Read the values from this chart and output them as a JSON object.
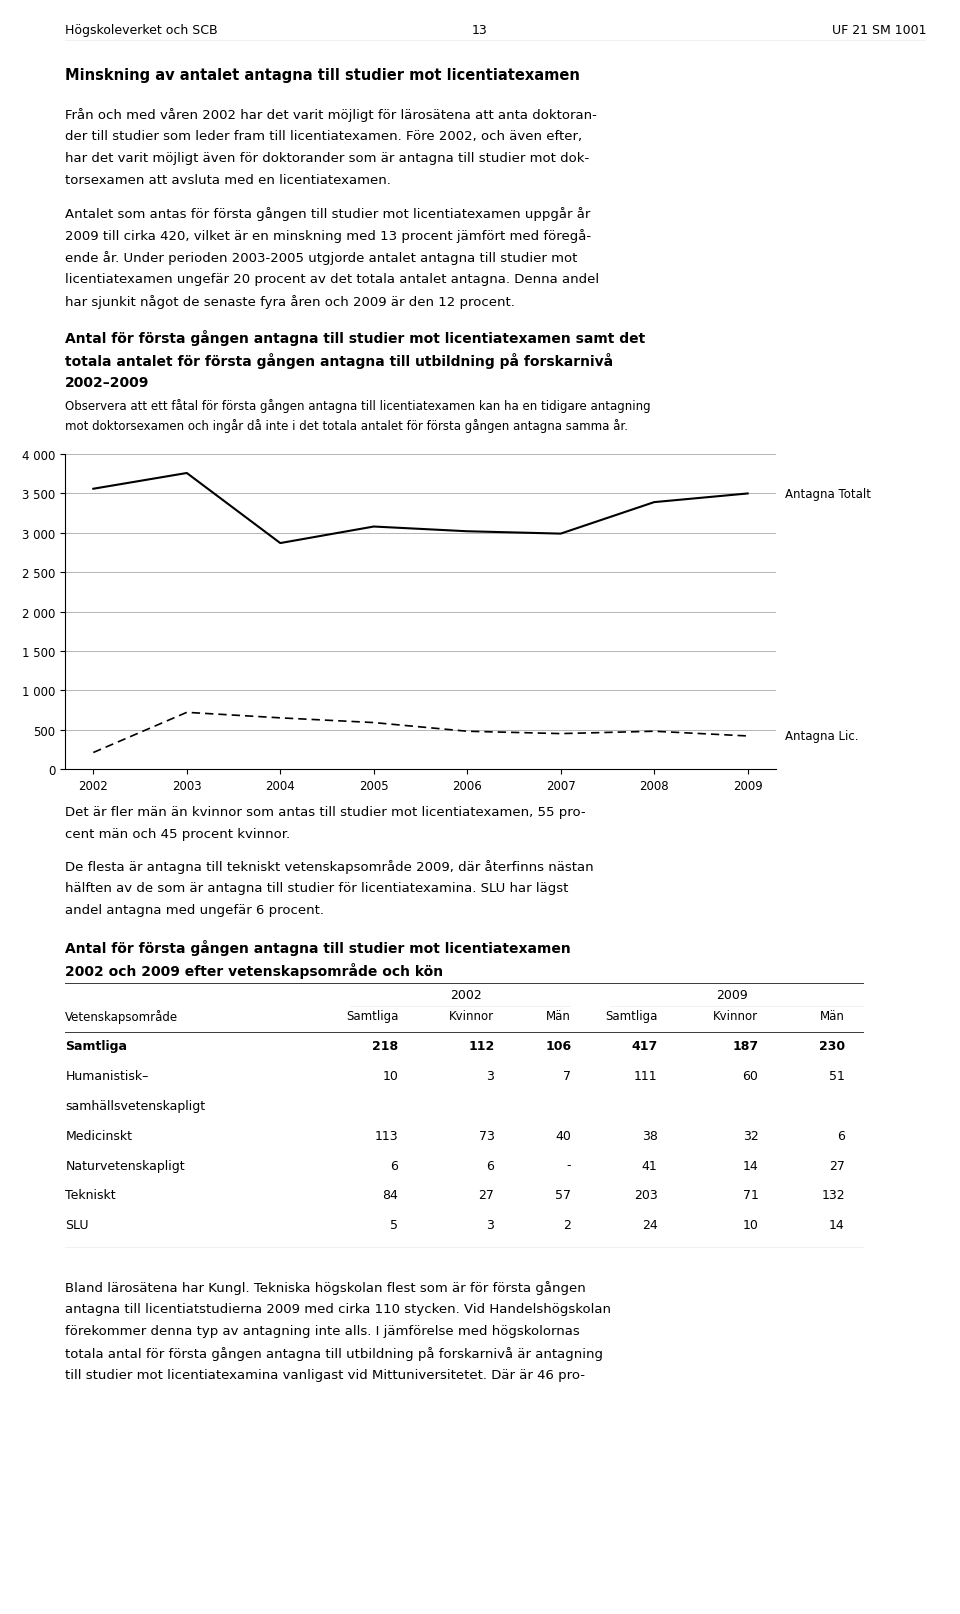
{
  "page_header_left": "Högskoleverket och SCB",
  "page_header_center": "13",
  "page_header_right": "UF 21 SM 1001",
  "section_title": "Minskning av antalet antagna till studier mot licentiatexamen",
  "section_body1": "Från och med våren 2002 har det varit möjligt för lärosätena att anta doktoran-der till studier som leder fram till licentiatexamen. Före 2002, och även efter, har det varit möjligt även för doktorander som är antagna till studier mot dok-torsexamen att avsluta med en licentiatexamen.",
  "section_body2": "Antalet som antas för första gången till studier mot licentiatexamen uppgår år 2009 till cirka 420, vilket är en minskning med 13 procent jämfört med föregå-ende år. Under perioden 2003-2005 utgjorde antalet antagna till studier mot licentiatexamen ungefär 20 procent av det totala antalet antagna. Denna andel har sjunkit något de senaste fyra åren och 2009 är den 12 procent.",
  "chart_title_line1": "Antal för första gången antagna till studier mot licentiatexamen samt det",
  "chart_title_line2": "totala antalet för första gången antagna till utbildning på forskarnivå",
  "chart_title_line3": "2002–2009",
  "chart_note_line1": "Observera att ett fåtal för första gången antagna till licentiatexamen kan ha en tidigare antagning",
  "chart_note_line2": "mot doktorsexamen och ingår då inte i det totala antalet för första gången antagna samma år.",
  "years": [
    2002,
    2003,
    2004,
    2005,
    2006,
    2007,
    2008,
    2009
  ],
  "antagna_totalt": [
    3560,
    3760,
    2870,
    3080,
    3020,
    2990,
    3390,
    3500
  ],
  "antagna_lic": [
    210,
    720,
    650,
    590,
    480,
    450,
    480,
    420
  ],
  "label_totalt": "Antagna Totalt",
  "label_lic": "Antagna Lic.",
  "ylim": [
    0,
    4000
  ],
  "yticks": [
    0,
    500,
    1000,
    1500,
    2000,
    2500,
    3000,
    3500,
    4000
  ],
  "section_body3_line1": "Det är fler män än kvinnor som antas till studier mot licentiatexamen, 55 pro-",
  "section_body3_line2": "cent män och 45 procent kvinnor.",
  "section_body4_line1": "De flesta är antagna till tekniskt vetenskapsområde 2009, där återfinns nästan",
  "section_body4_line2": "hälften av de som är antagna till studier för licentiatexamina. SLU har lägst",
  "section_body4_line3": "andel antagna med ungefär 6 procent.",
  "table_title_line1": "Antal för första gången antagna till studier mot licentiatexamen",
  "table_title_line2": "2002 och 2009 efter vetenskapsområde och kön",
  "table_rows": [
    [
      "Samtliga",
      "218",
      "112",
      "106",
      "417",
      "187",
      "230"
    ],
    [
      "Humanistisk–",
      "10",
      "3",
      "7",
      "111",
      "60",
      "51"
    ],
    [
      "samhällsvetenskapligt",
      "",
      "",
      "",
      "",
      "",
      ""
    ],
    [
      "Medicinskt",
      "113",
      "73",
      "40",
      "38",
      "32",
      "6"
    ],
    [
      "Naturvetenskapligt",
      "6",
      "6",
      "-",
      "41",
      "14",
      "27"
    ],
    [
      "Tekniskt",
      "84",
      "27",
      "57",
      "203",
      "71",
      "132"
    ],
    [
      "SLU",
      "5",
      "3",
      "2",
      "24",
      "10",
      "14"
    ]
  ],
  "section_body5_line1": "Bland lärosätena har Kungl. Tekniska högskolan flest som är för första gången",
  "section_body5_line2": "antagna till licentiatstudierna 2009 med cirka 110 stycken. Vid Handelshögskolan",
  "section_body5_line3": "förekommer denna typ av antagning inte alls. I jämförelse med högskolornas",
  "section_body5_line4": "totala antal för första gången antagna till utbildning på forskarnivå är antagning",
  "section_body5_line5": "till studier mot licentiatexamina vanligast vid Mittuniversitetet. Där är 46 pro-"
}
